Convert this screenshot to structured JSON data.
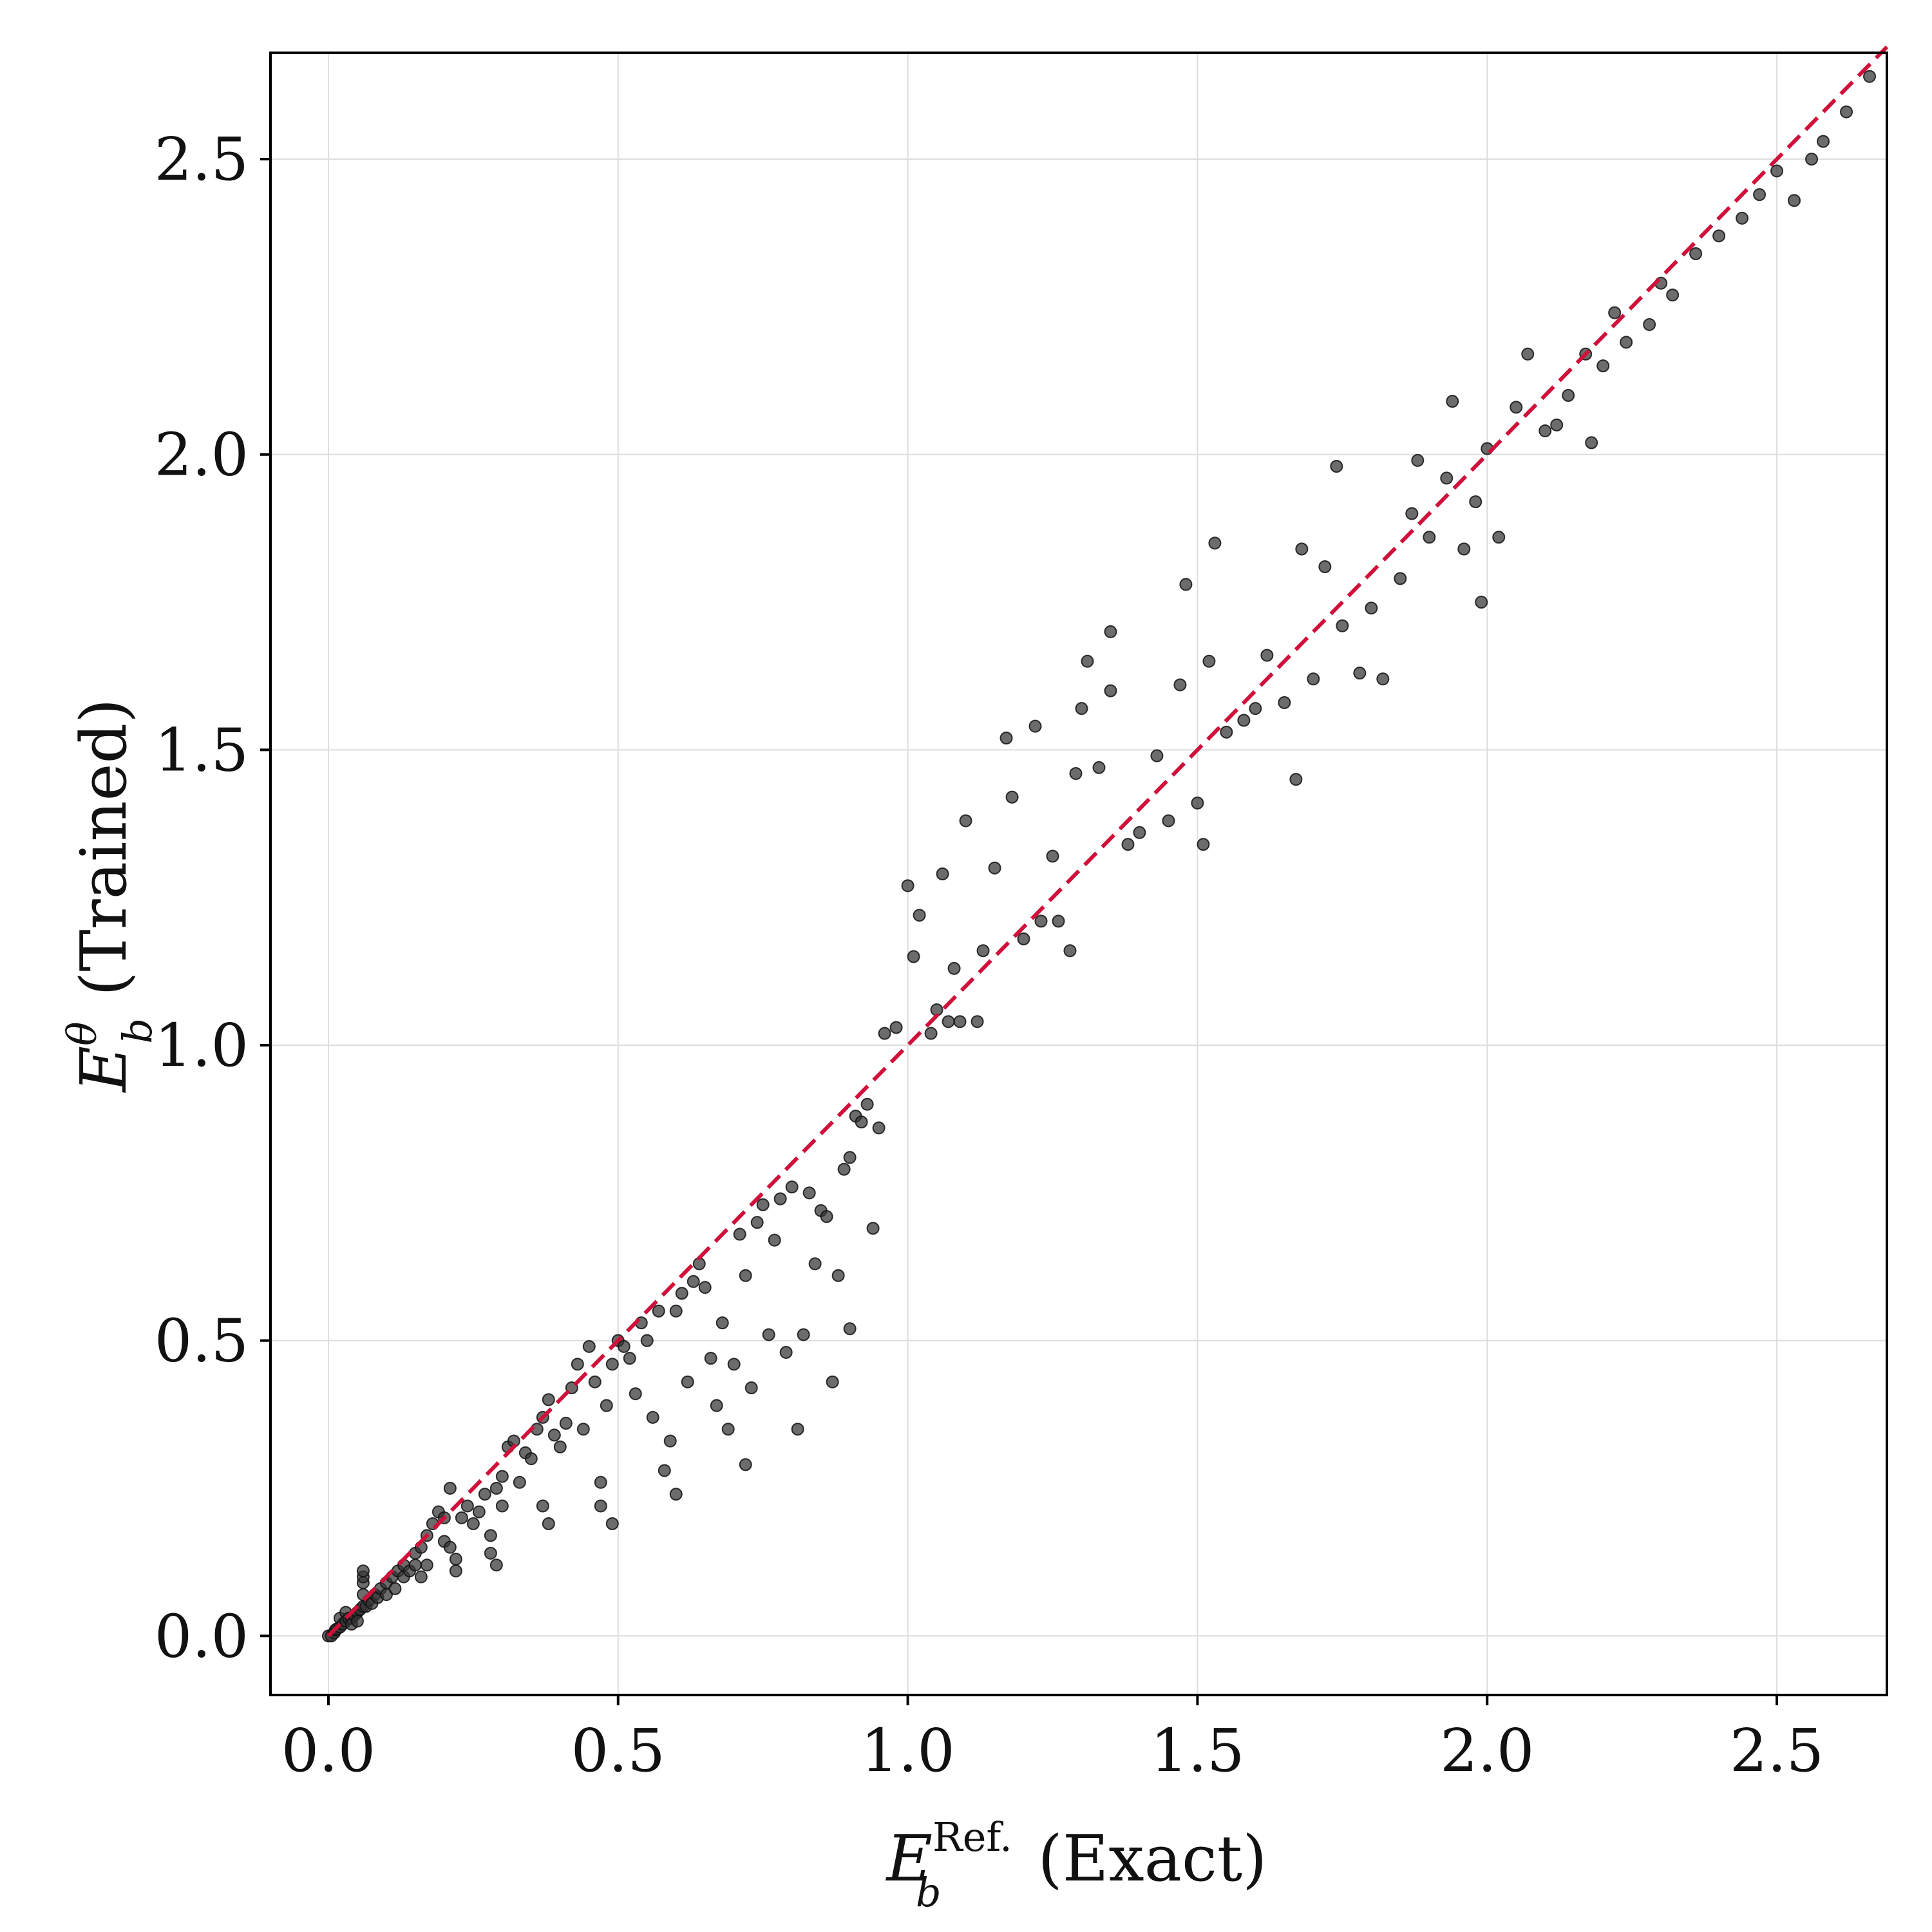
{
  "chart_data": {
    "type": "scatter",
    "xlabel": {
      "base": "E",
      "sub": "b",
      "sup": "Ref.",
      "text": "(Exact)"
    },
    "ylabel": {
      "base": "E",
      "sub": "b",
      "sup": "θ",
      "text": "(Trained)"
    },
    "xlim": [
      -0.1,
      2.69
    ],
    "ylim": [
      -0.1,
      2.68
    ],
    "xticks": [
      0.0,
      0.5,
      1.0,
      1.5,
      2.0,
      2.5
    ],
    "yticks": [
      0.0,
      0.5,
      1.0,
      1.5,
      2.0,
      2.5
    ],
    "xtick_labels": [
      "0.0",
      "0.5",
      "1.0",
      "1.5",
      "2.0",
      "2.5"
    ],
    "ytick_labels": [
      "0.0",
      "0.5",
      "1.0",
      "1.5",
      "2.0",
      "2.5"
    ],
    "grid": true,
    "legend": "none",
    "colors": {
      "points": "#333333",
      "reference_line": "#d0103a",
      "grid": "#dddddd"
    },
    "reference_line": {
      "style": "dashed",
      "x": [
        0.0,
        2.69
      ],
      "y": [
        0.0,
        2.69
      ]
    },
    "series": [
      {
        "points": [
          [
            0.0,
            0.0
          ],
          [
            0.005,
            0.0
          ],
          [
            0.01,
            0.005
          ],
          [
            0.012,
            0.01
          ],
          [
            0.015,
            0.012
          ],
          [
            0.02,
            0.015
          ],
          [
            0.02,
            0.03
          ],
          [
            0.025,
            0.02
          ],
          [
            0.03,
            0.025
          ],
          [
            0.03,
            0.04
          ],
          [
            0.035,
            0.03
          ],
          [
            0.04,
            0.03
          ],
          [
            0.04,
            0.02
          ],
          [
            0.045,
            0.035
          ],
          [
            0.05,
            0.04
          ],
          [
            0.05,
            0.025
          ],
          [
            0.055,
            0.045
          ],
          [
            0.06,
            0.05
          ],
          [
            0.06,
            0.07
          ],
          [
            0.06,
            0.09
          ],
          [
            0.06,
            0.1
          ],
          [
            0.06,
            0.11
          ],
          [
            0.065,
            0.05
          ],
          [
            0.07,
            0.06
          ],
          [
            0.075,
            0.055
          ],
          [
            0.08,
            0.07
          ],
          [
            0.085,
            0.065
          ],
          [
            0.09,
            0.08
          ],
          [
            0.1,
            0.09
          ],
          [
            0.1,
            0.07
          ],
          [
            0.11,
            0.1
          ],
          [
            0.115,
            0.08
          ],
          [
            0.12,
            0.11
          ],
          [
            0.13,
            0.1
          ],
          [
            0.13,
            0.12
          ],
          [
            0.14,
            0.11
          ],
          [
            0.15,
            0.14
          ],
          [
            0.15,
            0.12
          ],
          [
            0.16,
            0.15
          ],
          [
            0.16,
            0.1
          ],
          [
            0.17,
            0.17
          ],
          [
            0.17,
            0.12
          ],
          [
            0.18,
            0.19
          ],
          [
            0.19,
            0.21
          ],
          [
            0.2,
            0.2
          ],
          [
            0.2,
            0.16
          ],
          [
            0.21,
            0.25
          ],
          [
            0.21,
            0.15
          ],
          [
            0.22,
            0.13
          ],
          [
            0.22,
            0.11
          ],
          [
            0.23,
            0.2
          ],
          [
            0.24,
            0.22
          ],
          [
            0.25,
            0.19
          ],
          [
            0.26,
            0.21
          ],
          [
            0.27,
            0.24
          ],
          [
            0.28,
            0.17
          ],
          [
            0.28,
            0.14
          ],
          [
            0.29,
            0.12
          ],
          [
            0.29,
            0.25
          ],
          [
            0.3,
            0.27
          ],
          [
            0.3,
            0.22
          ],
          [
            0.31,
            0.32
          ],
          [
            0.32,
            0.33
          ],
          [
            0.33,
            0.26
          ],
          [
            0.34,
            0.31
          ],
          [
            0.35,
            0.3
          ],
          [
            0.36,
            0.35
          ],
          [
            0.37,
            0.37
          ],
          [
            0.37,
            0.22
          ],
          [
            0.38,
            0.4
          ],
          [
            0.38,
            0.19
          ],
          [
            0.39,
            0.34
          ],
          [
            0.4,
            0.32
          ],
          [
            0.41,
            0.36
          ],
          [
            0.42,
            0.42
          ],
          [
            0.43,
            0.46
          ],
          [
            0.44,
            0.35
          ],
          [
            0.45,
            0.49
          ],
          [
            0.46,
            0.43
          ],
          [
            0.47,
            0.22
          ],
          [
            0.47,
            0.26
          ],
          [
            0.48,
            0.39
          ],
          [
            0.49,
            0.19
          ],
          [
            0.49,
            0.46
          ],
          [
            0.5,
            0.5
          ],
          [
            0.51,
            0.49
          ],
          [
            0.52,
            0.47
          ],
          [
            0.53,
            0.41
          ],
          [
            0.54,
            0.53
          ],
          [
            0.55,
            0.5
          ],
          [
            0.56,
            0.37
          ],
          [
            0.57,
            0.55
          ],
          [
            0.58,
            0.28
          ],
          [
            0.59,
            0.33
          ],
          [
            0.6,
            0.24
          ],
          [
            0.6,
            0.55
          ],
          [
            0.61,
            0.58
          ],
          [
            0.62,
            0.43
          ],
          [
            0.63,
            0.6
          ],
          [
            0.64,
            0.63
          ],
          [
            0.65,
            0.59
          ],
          [
            0.66,
            0.47
          ],
          [
            0.67,
            0.39
          ],
          [
            0.68,
            0.53
          ],
          [
            0.69,
            0.35
          ],
          [
            0.7,
            0.46
          ],
          [
            0.71,
            0.68
          ],
          [
            0.72,
            0.29
          ],
          [
            0.72,
            0.61
          ],
          [
            0.73,
            0.42
          ],
          [
            0.74,
            0.7
          ],
          [
            0.75,
            0.73
          ],
          [
            0.76,
            0.51
          ],
          [
            0.77,
            0.67
          ],
          [
            0.78,
            0.74
          ],
          [
            0.79,
            0.48
          ],
          [
            0.8,
            0.76
          ],
          [
            0.81,
            0.35
          ],
          [
            0.82,
            0.51
          ],
          [
            0.83,
            0.75
          ],
          [
            0.84,
            0.63
          ],
          [
            0.85,
            0.72
          ],
          [
            0.86,
            0.71
          ],
          [
            0.87,
            0.43
          ],
          [
            0.88,
            0.61
          ],
          [
            0.89,
            0.79
          ],
          [
            0.9,
            0.81
          ],
          [
            0.9,
            0.52
          ],
          [
            0.91,
            0.88
          ],
          [
            0.92,
            0.87
          ],
          [
            0.93,
            0.9
          ],
          [
            0.94,
            0.69
          ],
          [
            0.95,
            0.86
          ],
          [
            0.96,
            1.02
          ],
          [
            0.98,
            1.03
          ],
          [
            1.0,
            1.27
          ],
          [
            1.01,
            1.15
          ],
          [
            1.02,
            1.22
          ],
          [
            1.04,
            1.02
          ],
          [
            1.05,
            1.06
          ],
          [
            1.06,
            1.29
          ],
          [
            1.07,
            1.04
          ],
          [
            1.08,
            1.13
          ],
          [
            1.09,
            1.04
          ],
          [
            1.1,
            1.38
          ],
          [
            1.12,
            1.04
          ],
          [
            1.13,
            1.16
          ],
          [
            1.15,
            1.3
          ],
          [
            1.17,
            1.52
          ],
          [
            1.18,
            1.42
          ],
          [
            1.2,
            1.18
          ],
          [
            1.22,
            1.54
          ],
          [
            1.23,
            1.21
          ],
          [
            1.25,
            1.32
          ],
          [
            1.26,
            1.21
          ],
          [
            1.28,
            1.16
          ],
          [
            1.29,
            1.46
          ],
          [
            1.3,
            1.57
          ],
          [
            1.31,
            1.65
          ],
          [
            1.33,
            1.47
          ],
          [
            1.35,
            1.6
          ],
          [
            1.35,
            1.7
          ],
          [
            1.38,
            1.34
          ],
          [
            1.4,
            1.36
          ],
          [
            1.43,
            1.49
          ],
          [
            1.45,
            1.38
          ],
          [
            1.47,
            1.61
          ],
          [
            1.48,
            1.78
          ],
          [
            1.5,
            1.41
          ],
          [
            1.51,
            1.34
          ],
          [
            1.52,
            1.65
          ],
          [
            1.53,
            1.85
          ],
          [
            1.55,
            1.53
          ],
          [
            1.58,
            1.55
          ],
          [
            1.6,
            1.57
          ],
          [
            1.62,
            1.66
          ],
          [
            1.65,
            1.58
          ],
          [
            1.67,
            1.45
          ],
          [
            1.68,
            1.84
          ],
          [
            1.7,
            1.62
          ],
          [
            1.72,
            1.81
          ],
          [
            1.74,
            1.98
          ],
          [
            1.75,
            1.71
          ],
          [
            1.78,
            1.63
          ],
          [
            1.8,
            1.74
          ],
          [
            1.82,
            1.62
          ],
          [
            1.85,
            1.79
          ],
          [
            1.87,
            1.9
          ],
          [
            1.88,
            1.99
          ],
          [
            1.9,
            1.86
          ],
          [
            1.93,
            1.96
          ],
          [
            1.94,
            2.09
          ],
          [
            1.96,
            1.84
          ],
          [
            1.98,
            1.92
          ],
          [
            1.99,
            1.75
          ],
          [
            2.0,
            2.01
          ],
          [
            2.02,
            1.86
          ],
          [
            2.05,
            2.08
          ],
          [
            2.07,
            2.17
          ],
          [
            2.1,
            2.04
          ],
          [
            2.12,
            2.05
          ],
          [
            2.14,
            2.1
          ],
          [
            2.17,
            2.17
          ],
          [
            2.18,
            2.02
          ],
          [
            2.2,
            2.15
          ],
          [
            2.22,
            2.24
          ],
          [
            2.24,
            2.19
          ],
          [
            2.28,
            2.22
          ],
          [
            2.3,
            2.29
          ],
          [
            2.32,
            2.27
          ],
          [
            2.36,
            2.34
          ],
          [
            2.4,
            2.37
          ],
          [
            2.44,
            2.4
          ],
          [
            2.47,
            2.44
          ],
          [
            2.5,
            2.48
          ],
          [
            2.53,
            2.43
          ],
          [
            2.56,
            2.5
          ],
          [
            2.58,
            2.53
          ],
          [
            2.62,
            2.58
          ],
          [
            2.66,
            2.64
          ]
        ]
      }
    ]
  }
}
